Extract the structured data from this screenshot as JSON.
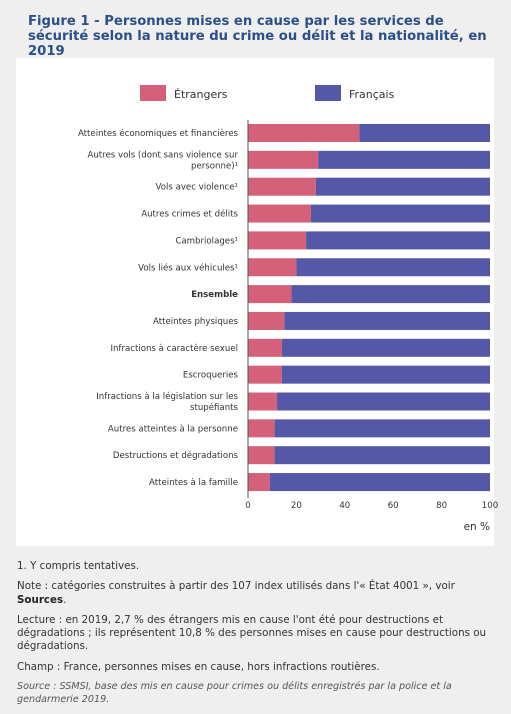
{
  "title": "Figure 1 - Personnes mises en cause par les services de sécurité selon la nature du crime ou délit et la nationalité, en 2019",
  "colors": {
    "etrangers": "#d4607a",
    "francais": "#5558a6"
  },
  "chart_data": {
    "type": "bar",
    "orientation": "horizontal",
    "stacked": true,
    "categories": [
      "Atteintes économiques et financières",
      "Autres vols (dont sans violence sur personne)¹",
      "Vols avec violence¹",
      "Autres crimes et délits",
      "Cambriolages¹",
      "Vols liés aux véhicules¹",
      "Ensemble",
      "Atteintes physiques",
      "Infractions à caractère sexuel",
      "Escroqueries",
      "Infractions à la législation sur les stupéfiants",
      "Autres atteintes à la personne",
      "Destructions et dégradations",
      "Atteintes à la famille"
    ],
    "category_lines": [
      [
        "Atteintes économiques et financières"
      ],
      [
        "Autres vols (dont sans violence sur",
        "personne)¹"
      ],
      [
        "Vols avec violence¹"
      ],
      [
        "Autres crimes et délits"
      ],
      [
        "Cambriolages¹"
      ],
      [
        "Vols liés aux véhicules¹"
      ],
      [
        "Ensemble"
      ],
      [
        "Atteintes physiques"
      ],
      [
        "Infractions à caractère sexuel"
      ],
      [
        "Escroqueries"
      ],
      [
        "Infractions à la législation sur les",
        "stupéfiants"
      ],
      [
        "Autres atteintes à la personne"
      ],
      [
        "Destructions et dégradations"
      ],
      [
        "Atteintes à la famille"
      ]
    ],
    "bold_category": "Ensemble",
    "series": [
      {
        "name": "Étrangers",
        "values": [
          46,
          29,
          28,
          26,
          24,
          20,
          18,
          15,
          14,
          14,
          12,
          11,
          11,
          9
        ]
      },
      {
        "name": "Français",
        "values": [
          54,
          71,
          72,
          74,
          76,
          80,
          82,
          85,
          86,
          86,
          88,
          89,
          89,
          91
        ]
      }
    ],
    "xlim": [
      0,
      100
    ],
    "xticks": [
      "0",
      "20",
      "40",
      "60",
      "80",
      "100"
    ],
    "xlabel": "en %",
    "legend_position": "top"
  },
  "notes": {
    "n1": "1. Y compris tentatives.",
    "note_prefix": "Note : catégories construites à partir des 107 index utilisés dans l'« État 4001 », voir ",
    "note_link": "Sources",
    "note_suffix": ".",
    "lecture": "Lecture : en 2019, 2,7 % des étrangers mis en cause l'ont été pour destructions et dégradations ; ils représentent 10,8 % des personnes mises en cause pour destructions ou dégradations.",
    "champ": "Champ : France, personnes mises en cause, hors infractions routières.",
    "source": "Source : SSMSI, base des mis en cause pour crimes ou délits enregistrés par la police et la gendarmerie 2019."
  }
}
